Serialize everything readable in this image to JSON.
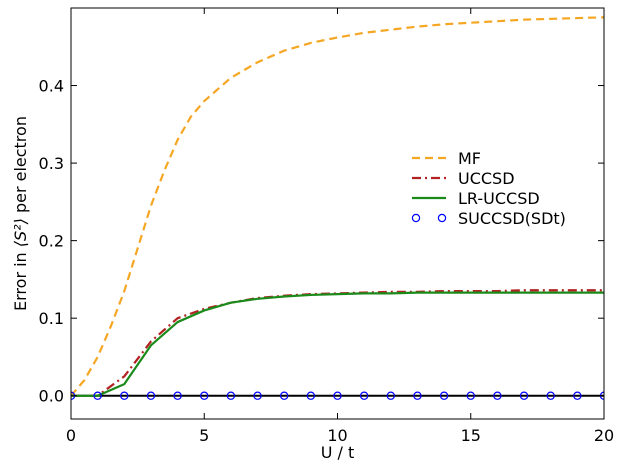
{
  "chart_data": {
    "type": "line",
    "title": "",
    "xlabel": "U / t",
    "ylabel_prefix": "Error in ",
    "ylabel_symbol": "⟨S²⟩",
    "ylabel_suffix": " per electron",
    "xlim": [
      0,
      20
    ],
    "ylim": [
      -0.03,
      0.5
    ],
    "xticks": [
      0,
      5,
      10,
      15,
      20
    ],
    "yticks": [
      0.0,
      0.1,
      0.2,
      0.3,
      0.4
    ],
    "grid": false,
    "legend_position": "center-right",
    "zero_line_color": "#000000",
    "series": [
      {
        "name": "MF",
        "style": "dashed",
        "color": "#f5a623",
        "x": [
          0,
          0.5,
          1,
          1.5,
          2,
          2.5,
          3,
          3.5,
          4,
          4.5,
          5,
          6,
          7,
          8,
          9,
          10,
          11,
          12,
          13,
          14,
          15,
          16,
          17,
          18,
          19,
          20
        ],
        "y": [
          0.0,
          0.02,
          0.05,
          0.09,
          0.135,
          0.19,
          0.245,
          0.29,
          0.33,
          0.36,
          0.38,
          0.41,
          0.43,
          0.445,
          0.455,
          0.462,
          0.468,
          0.472,
          0.476,
          0.479,
          0.481,
          0.483,
          0.485,
          0.486,
          0.487,
          0.488
        ]
      },
      {
        "name": "UCCSD",
        "style": "dashdot",
        "color": "#b22222",
        "x": [
          0,
          1,
          2,
          3,
          4,
          5,
          6,
          7,
          8,
          9,
          10,
          11,
          12,
          13,
          14,
          15,
          16,
          17,
          18,
          19,
          20
        ],
        "y": [
          0.0,
          0.0,
          0.025,
          0.07,
          0.1,
          0.112,
          0.12,
          0.126,
          0.129,
          0.131,
          0.132,
          0.133,
          0.134,
          0.134,
          0.135,
          0.135,
          0.135,
          0.136,
          0.136,
          0.136,
          0.136
        ]
      },
      {
        "name": "LR-UCCSD",
        "style": "solid",
        "color": "#1a8a1a",
        "x": [
          0,
          1,
          2,
          3,
          4,
          5,
          6,
          7,
          8,
          9,
          10,
          11,
          12,
          13,
          14,
          15,
          16,
          17,
          18,
          19,
          20
        ],
        "y": [
          0.0,
          0.0,
          0.015,
          0.065,
          0.095,
          0.11,
          0.12,
          0.125,
          0.128,
          0.13,
          0.131,
          0.132,
          0.132,
          0.133,
          0.133,
          0.133,
          0.133,
          0.133,
          0.133,
          0.133,
          0.133
        ]
      },
      {
        "name": "SUCCSD(SDt)",
        "style": "markers",
        "color": "#0000ff",
        "x": [
          0,
          1,
          2,
          3,
          4,
          5,
          6,
          7,
          8,
          9,
          10,
          11,
          12,
          13,
          14,
          15,
          16,
          17,
          18,
          19,
          20
        ],
        "y": [
          0,
          0,
          0,
          0,
          0,
          0,
          0,
          0,
          0,
          0,
          0,
          0,
          0,
          0,
          0,
          0,
          0,
          0,
          0,
          0,
          0
        ]
      }
    ]
  }
}
